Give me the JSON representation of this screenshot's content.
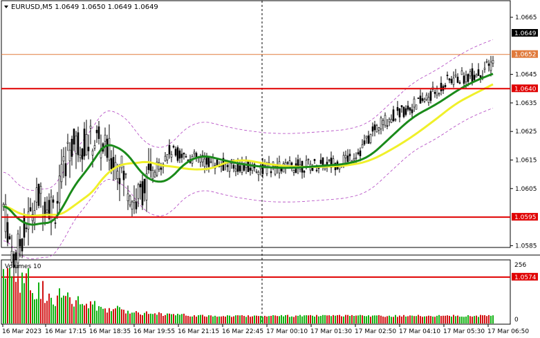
{
  "header": {
    "symbol_line": "EURUSD,M5  1.0649 1.0650 1.0649 1.0649",
    "menu_icon": "triangle-down-icon"
  },
  "price_axis": {
    "ticks": [
      "1.0665",
      "1.0645",
      "1.0635",
      "1.0625",
      "1.0615",
      "1.0605",
      "1.0585"
    ],
    "current_price": "1.0649"
  },
  "levels": [
    {
      "price": "1.0652",
      "color": "#e07a3c",
      "style": "thin"
    },
    {
      "price": "1.0640",
      "color": "#e00000",
      "style": "thick"
    },
    {
      "price": "1.0595",
      "color": "#e00000",
      "style": "thick"
    },
    {
      "price": "1.0574",
      "color": "#e00000",
      "style": "thick"
    }
  ],
  "volumes": {
    "label": "Volumes 10",
    "axis_top": "256",
    "axis_bottom": "0"
  },
  "time_axis": [
    "16 Mar 2023",
    "16 Mar 17:15",
    "16 Mar 18:35",
    "16 Mar 19:55",
    "16 Mar 21:15",
    "16 Mar 22:45",
    "17 Mar 00:10",
    "17 Mar 01:30",
    "17 Mar 02:50",
    "17 Mar 04:10",
    "17 Mar 05:30",
    "17 Mar 06:50"
  ],
  "colors": {
    "candle": "#000000",
    "ma_fast": "#1a8a1a",
    "ma_slow": "#f0f02a",
    "envelope": "#b040c0",
    "volume_up": "#10b010",
    "volume_down": "#d01010",
    "level_red": "#e00000"
  }
}
